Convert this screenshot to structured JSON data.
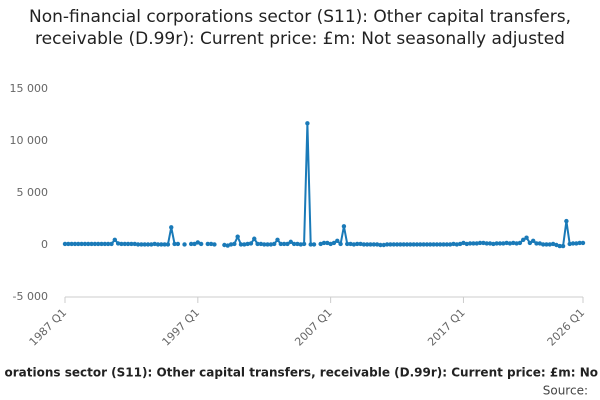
{
  "chart_data": {
    "type": "line",
    "title": "Non-financial corporations sector (S11): Other capital transfers, receivable (D.99r): Current price: £m: Not seasonally adjusted",
    "footer": "orations sector (S11): Other capital transfers, receivable (D.99r): Current price: £m: No",
    "source": "Source:",
    "categories": [
      "1987 Q1",
      null,
      null,
      null,
      null,
      null,
      null,
      null,
      null,
      null,
      null,
      null,
      null,
      null,
      null,
      null,
      null,
      null,
      null,
      null,
      null,
      null,
      null,
      null,
      null,
      null,
      null,
      null,
      null,
      null,
      null,
      null,
      null,
      null,
      null,
      null,
      null,
      null,
      null,
      null,
      "1997 Q1",
      null,
      null,
      null,
      null,
      null,
      null,
      null,
      null,
      null,
      null,
      null,
      null,
      null,
      null,
      null,
      null,
      null,
      null,
      null,
      null,
      null,
      null,
      null,
      null,
      null,
      null,
      null,
      null,
      null,
      null,
      null,
      null,
      null,
      null,
      null,
      null,
      null,
      null,
      null,
      "2007 Q1",
      null,
      null,
      null,
      null,
      null,
      null,
      null,
      null,
      null,
      null,
      null,
      null,
      null,
      null,
      null,
      null,
      null,
      null,
      null,
      null,
      null,
      null,
      null,
      null,
      null,
      null,
      null,
      null,
      null,
      null,
      null,
      null,
      null,
      null,
      null,
      null,
      null,
      null,
      null,
      "2017 Q1",
      null,
      null,
      null,
      null,
      null,
      null,
      null,
      null,
      null,
      null,
      null,
      null,
      null,
      null,
      null,
      null,
      null,
      null,
      null,
      null,
      null,
      null,
      null,
      null,
      null,
      null,
      null,
      null,
      null,
      null,
      null,
      null,
      null,
      null,
      null,
      "2026 Q1"
    ],
    "series": [
      {
        "color": "#1a7ab8",
        "values": [
          100,
          100,
          100,
          100,
          100,
          100,
          100,
          100,
          100,
          100,
          100,
          100,
          100,
          100,
          100,
          500,
          150,
          100,
          100,
          100,
          100,
          100,
          50,
          50,
          50,
          50,
          50,
          100,
          50,
          50,
          50,
          50,
          1700,
          100,
          100,
          null,
          50,
          null,
          100,
          100,
          250,
          100,
          null,
          100,
          100,
          50,
          null,
          null,
          0,
          -50,
          50,
          100,
          800,
          50,
          50,
          100,
          150,
          600,
          100,
          100,
          50,
          50,
          50,
          100,
          500,
          100,
          100,
          100,
          300,
          100,
          100,
          50,
          100,
          11700,
          50,
          50,
          null,
          100,
          200,
          200,
          100,
          200,
          400,
          100,
          1800,
          100,
          100,
          50,
          100,
          100,
          50,
          50,
          50,
          50,
          50,
          0,
          0,
          50,
          50,
          50,
          50,
          50,
          50,
          50,
          50,
          50,
          50,
          50,
          50,
          50,
          50,
          50,
          50,
          50,
          50,
          50,
          50,
          100,
          50,
          100,
          200,
          100,
          150,
          150,
          150,
          200,
          200,
          150,
          150,
          100,
          150,
          150,
          150,
          200,
          150,
          200,
          150,
          200,
          500,
          700,
          200,
          400,
          150,
          150,
          50,
          50,
          50,
          100,
          0,
          -100,
          -100,
          2300,
          100,
          150,
          150,
          200,
          200
        ]
      }
    ],
    "ylim": [
      -5000,
      15000
    ],
    "yticks": [
      {
        "value": -5000,
        "label": "-5 000"
      },
      0,
      {
        "value": 5000,
        "label": "5 000"
      },
      {
        "value": 10000,
        "label": "10 000"
      },
      {
        "value": 15000,
        "label": "15 000"
      }
    ]
  }
}
